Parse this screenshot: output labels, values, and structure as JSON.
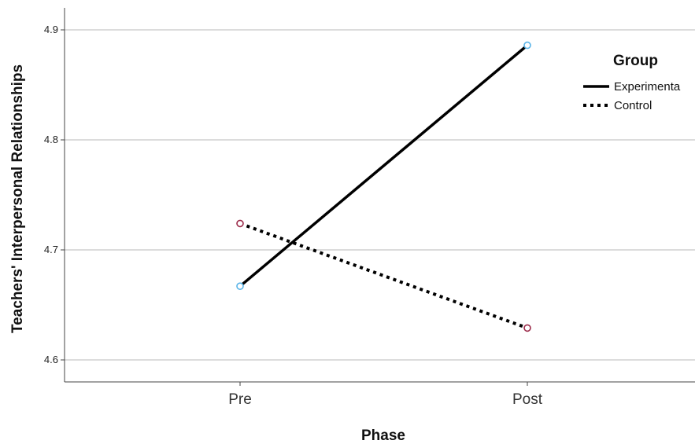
{
  "chart_data": {
    "type": "line",
    "xlabel": "Phase",
    "ylabel": "Teachers' Interpersonal Relationships",
    "categories": [
      "Pre",
      "Post"
    ],
    "ylim": [
      4.58,
      4.92
    ],
    "yticks": [
      4.6,
      4.7,
      4.8,
      4.9
    ],
    "grid": true,
    "legend": {
      "title": "Group",
      "placement": "right"
    },
    "series": [
      {
        "name": "Experimenta",
        "values": [
          4.667,
          4.886
        ],
        "line_style": "solid",
        "marker_color": "#5ab4e8"
      },
      {
        "name": "Control",
        "values": [
          4.724,
          4.629
        ],
        "line_style": "dotted",
        "marker_color": "#9c2b4a"
      }
    ],
    "colors": {
      "line": "#000000",
      "grid": "#c8c8c8",
      "axis": "#444444"
    }
  }
}
